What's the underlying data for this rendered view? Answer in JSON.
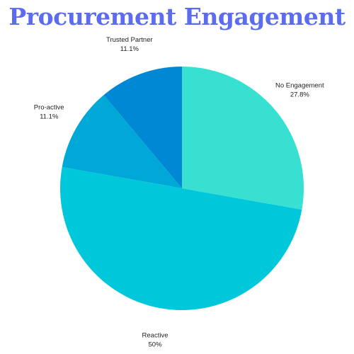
{
  "title": "Procurement Engagement",
  "colors": {
    "title": "#5b6cf0"
  },
  "chart_data": {
    "type": "pie",
    "title": "Procurement Engagement",
    "start": "12 o'clock",
    "direction": "clockwise",
    "slices": [
      {
        "name": "No Engagement",
        "value": 27.8,
        "value_label": "27.8%",
        "color": "#38e0d2"
      },
      {
        "name": "Reactive",
        "value": 50.0,
        "value_label": "50%",
        "color": "#00c8da"
      },
      {
        "name": "Pro-active",
        "value": 11.1,
        "value_label": "11.1%",
        "color": "#00a8d8"
      },
      {
        "name": "Trusted Partner",
        "value": 11.1,
        "value_label": "11.1%",
        "color": "#0088d4"
      }
    ],
    "legend": "none",
    "labels": "outside"
  }
}
